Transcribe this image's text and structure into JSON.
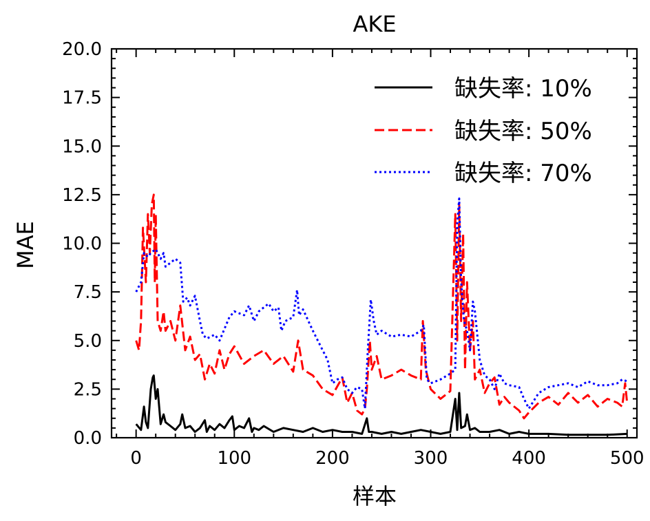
{
  "chart_data": {
    "type": "line",
    "title": "AKE",
    "xlabel": "样本",
    "ylabel": "MAE",
    "xlim": [
      -25,
      510
    ],
    "ylim": [
      0,
      20
    ],
    "xticks": [
      0,
      100,
      200,
      300,
      400,
      500
    ],
    "xtick_labels": [
      "0",
      "100",
      "200",
      "300",
      "400",
      "500"
    ],
    "yticks": [
      0,
      2.5,
      5,
      7.5,
      10,
      12.5,
      15,
      17.5,
      20
    ],
    "ytick_labels": [
      "0.0",
      "2.5",
      "5.0",
      "7.5",
      "10.0",
      "12.5",
      "15.0",
      "17.5",
      "20.0"
    ],
    "grid": false,
    "legend_position": "top-right",
    "series": [
      {
        "name": "缺失率: 10%",
        "color": "#000000",
        "style": "solid",
        "x": [
          0,
          5,
          8,
          10,
          12,
          15,
          17,
          18,
          20,
          22,
          25,
          28,
          30,
          35,
          40,
          45,
          47,
          50,
          55,
          60,
          65,
          70,
          72,
          75,
          80,
          85,
          90,
          95,
          98,
          100,
          105,
          110,
          115,
          118,
          120,
          125,
          130,
          140,
          150,
          160,
          170,
          180,
          190,
          200,
          210,
          220,
          230,
          235,
          237,
          240,
          250,
          260,
          270,
          280,
          290,
          300,
          310,
          320,
          325,
          327,
          329,
          331,
          335,
          337,
          340,
          345,
          350,
          360,
          370,
          380,
          390,
          400,
          420,
          440,
          460,
          480,
          500
        ],
        "y": [
          0.7,
          0.4,
          1.6,
          0.8,
          0.5,
          2.5,
          3.1,
          3.2,
          2.0,
          2.5,
          0.7,
          1.2,
          0.8,
          0.6,
          0.4,
          0.7,
          1.2,
          0.5,
          0.6,
          0.3,
          0.5,
          0.9,
          0.3,
          0.6,
          0.4,
          0.7,
          0.5,
          0.9,
          1.1,
          0.4,
          0.6,
          0.5,
          1.0,
          0.3,
          0.5,
          0.4,
          0.6,
          0.3,
          0.5,
          0.4,
          0.3,
          0.5,
          0.3,
          0.4,
          0.3,
          0.3,
          0.2,
          1.0,
          0.3,
          0.3,
          0.2,
          0.3,
          0.2,
          0.3,
          0.4,
          0.3,
          0.2,
          0.3,
          2.0,
          0.4,
          2.3,
          0.5,
          0.6,
          1.2,
          0.4,
          0.5,
          0.3,
          0.3,
          0.4,
          0.2,
          0.3,
          0.2,
          0.2,
          0.15,
          0.15,
          0.15,
          0.2
        ]
      },
      {
        "name": "缺失率: 50%",
        "color": "#ff0000",
        "style": "dashed",
        "x": [
          0,
          3,
          5,
          7,
          10,
          12,
          14,
          16,
          18,
          19,
          20,
          22,
          25,
          28,
          30,
          35,
          40,
          45,
          50,
          55,
          60,
          65,
          70,
          75,
          80,
          85,
          90,
          95,
          100,
          110,
          120,
          130,
          140,
          150,
          160,
          165,
          170,
          180,
          190,
          200,
          210,
          215,
          220,
          225,
          230,
          233,
          235,
          238,
          240,
          245,
          250,
          260,
          270,
          280,
          290,
          292,
          295,
          300,
          310,
          320,
          325,
          327,
          329,
          331,
          333,
          335,
          337,
          340,
          343,
          345,
          350,
          355,
          360,
          365,
          370,
          375,
          380,
          390,
          395,
          400,
          410,
          420,
          430,
          440,
          450,
          460,
          470,
          480,
          490,
          495,
          498,
          500
        ],
        "y": [
          5.0,
          4.5,
          6.0,
          10.8,
          8.0,
          11.5,
          9.5,
          12.0,
          12.5,
          8.0,
          11.5,
          6.0,
          5.5,
          6.5,
          5.5,
          6.0,
          5.0,
          6.8,
          4.5,
          5.2,
          4.0,
          4.3,
          3.0,
          3.8,
          3.3,
          4.5,
          3.5,
          4.3,
          4.7,
          3.8,
          4.2,
          4.5,
          3.8,
          4.2,
          3.4,
          5.0,
          3.5,
          3.2,
          2.5,
          2.2,
          3.1,
          1.8,
          2.3,
          1.4,
          1.2,
          1.5,
          2.5,
          5.0,
          3.5,
          4.2,
          3.0,
          3.2,
          3.5,
          3.2,
          3.0,
          6.0,
          3.5,
          2.5,
          2.0,
          2.4,
          11.5,
          5.0,
          12.0,
          6.0,
          10.5,
          3.5,
          8.0,
          4.5,
          6.0,
          3.0,
          3.5,
          2.3,
          2.8,
          3.1,
          1.7,
          2.1,
          1.8,
          1.4,
          1.0,
          1.3,
          1.8,
          2.1,
          1.7,
          2.3,
          1.8,
          2.2,
          1.6,
          2.0,
          1.8,
          1.6,
          2.8,
          1.8
        ]
      },
      {
        "name": "缺失率: 70%",
        "color": "#0000ff",
        "style": "dotted",
        "x": [
          0,
          5,
          8,
          12,
          15,
          20,
          25,
          28,
          30,
          35,
          40,
          45,
          48,
          52,
          55,
          60,
          65,
          68,
          72,
          80,
          85,
          90,
          95,
          100,
          110,
          115,
          120,
          125,
          130,
          135,
          140,
          145,
          148,
          152,
          160,
          164,
          166,
          170,
          180,
          185,
          190,
          195,
          200,
          205,
          210,
          215,
          220,
          225,
          230,
          233,
          236,
          239,
          242,
          245,
          250,
          260,
          270,
          280,
          290,
          293,
          296,
          300,
          310,
          320,
          325,
          327,
          329,
          331,
          334,
          337,
          340,
          343,
          345,
          350,
          355,
          360,
          365,
          370,
          375,
          380,
          390,
          395,
          400,
          410,
          420,
          430,
          440,
          450,
          460,
          470,
          480,
          490,
          495,
          500
        ],
        "y": [
          7.5,
          8.0,
          9.5,
          9.3,
          9.5,
          9.7,
          9.2,
          9.5,
          8.8,
          9.0,
          9.2,
          9.0,
          7.0,
          7.2,
          6.8,
          7.3,
          6.0,
          5.3,
          5.1,
          5.3,
          5.0,
          5.6,
          6.2,
          6.5,
          6.3,
          6.8,
          6.0,
          6.5,
          6.7,
          6.9,
          6.5,
          6.7,
          5.5,
          6.0,
          6.2,
          7.6,
          6.3,
          6.6,
          5.5,
          5.0,
          4.5,
          4.0,
          2.8,
          3.0,
          3.1,
          2.5,
          2.3,
          2.6,
          2.5,
          1.5,
          4.5,
          7.1,
          6.0,
          5.3,
          5.5,
          5.2,
          5.3,
          5.2,
          5.5,
          5.8,
          3.0,
          2.8,
          3.0,
          3.3,
          3.5,
          11.0,
          12.3,
          8.0,
          6.0,
          5.5,
          4.5,
          7.0,
          6.5,
          4.0,
          3.2,
          3.0,
          2.5,
          3.3,
          2.8,
          2.7,
          2.6,
          2.0,
          1.5,
          2.3,
          2.6,
          2.7,
          2.8,
          2.6,
          2.9,
          2.7,
          2.7,
          2.8,
          3.0,
          2.9
        ]
      }
    ]
  }
}
